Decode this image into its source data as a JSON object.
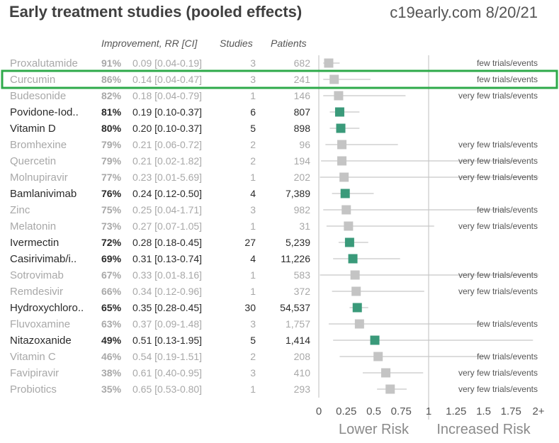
{
  "header": {
    "title": "Early treatment studies (pooled effects)",
    "site": "c19early.com 8/20/21"
  },
  "columns": {
    "improvement": "Improvement, RR [CI]",
    "studies": "Studies",
    "patients": "Patients"
  },
  "colors": {
    "significant_marker": "#3a9a7a",
    "nonsignificant_marker": "#c4c4c4",
    "highlight_box": "#2eaa4a",
    "dim_text": "#a8a8a8",
    "dark_text": "#2a2a2a"
  },
  "chart_data": {
    "type": "forest",
    "title": "Early treatment studies (pooled effects)",
    "xlabel_left": "Lower Risk",
    "xlabel_right": "Increased Risk",
    "xlim": [
      0,
      2
    ],
    "reference_line": 1,
    "ticks": [
      {
        "value": 0,
        "label": "0"
      },
      {
        "value": 0.25,
        "label": "0.25"
      },
      {
        "value": 0.5,
        "label": "0.5"
      },
      {
        "value": 0.75,
        "label": "0.75"
      },
      {
        "value": 1,
        "label": "1"
      },
      {
        "value": 1.25,
        "label": "1.25"
      },
      {
        "value": 1.5,
        "label": "1.5"
      },
      {
        "value": 1.75,
        "label": "1.75"
      },
      {
        "value": 2,
        "label": "2+"
      }
    ],
    "highlighted_row": "Curcumin",
    "rows": [
      {
        "name": "Proxalutamide",
        "improvement": "91%",
        "rr_text": "0.09 [0.04-0.19]",
        "rr": 0.09,
        "lo": 0.04,
        "hi": 0.19,
        "studies": "3",
        "patients": "682",
        "note": "few trials/events",
        "significant": false
      },
      {
        "name": "Curcumin",
        "improvement": "86%",
        "rr_text": "0.14 [0.04-0.47]",
        "rr": 0.14,
        "lo": 0.04,
        "hi": 0.47,
        "studies": "3",
        "patients": "241",
        "note": "few trials/events",
        "significant": false
      },
      {
        "name": "Budesonide",
        "improvement": "82%",
        "rr_text": "0.18 [0.04-0.79]",
        "rr": 0.18,
        "lo": 0.04,
        "hi": 0.79,
        "studies": "1",
        "patients": "146",
        "note": "very few trials/events",
        "significant": false
      },
      {
        "name": "Povidone-Iod..",
        "improvement": "81%",
        "rr_text": "0.19 [0.10-0.37]",
        "rr": 0.19,
        "lo": 0.1,
        "hi": 0.37,
        "studies": "6",
        "patients": "807",
        "note": "",
        "significant": true
      },
      {
        "name": "Vitamin D",
        "improvement": "80%",
        "rr_text": "0.20 [0.10-0.37]",
        "rr": 0.2,
        "lo": 0.1,
        "hi": 0.37,
        "studies": "5",
        "patients": "898",
        "note": "",
        "significant": true
      },
      {
        "name": "Bromhexine",
        "improvement": "79%",
        "rr_text": "0.21 [0.06-0.72]",
        "rr": 0.21,
        "lo": 0.06,
        "hi": 0.72,
        "studies": "2",
        "patients": "96",
        "note": "very few trials/events",
        "significant": false
      },
      {
        "name": "Quercetin",
        "improvement": "79%",
        "rr_text": "0.21 [0.02-1.82]",
        "rr": 0.21,
        "lo": 0.02,
        "hi": 1.82,
        "studies": "2",
        "patients": "194",
        "note": "very few trials/events",
        "significant": false
      },
      {
        "name": "Molnupiravir",
        "improvement": "77%",
        "rr_text": "0.23 [0.01-5.69]",
        "rr": 0.23,
        "lo": 0.01,
        "hi": 5.69,
        "studies": "1",
        "patients": "202",
        "note": "very few trials/events",
        "significant": false
      },
      {
        "name": "Bamlanivimab",
        "improvement": "76%",
        "rr_text": "0.24 [0.12-0.50]",
        "rr": 0.24,
        "lo": 0.12,
        "hi": 0.5,
        "studies": "4",
        "patients": "7,389",
        "note": "",
        "significant": true
      },
      {
        "name": "Zinc",
        "improvement": "75%",
        "rr_text": "0.25 [0.04-1.71]",
        "rr": 0.25,
        "lo": 0.04,
        "hi": 1.71,
        "studies": "3",
        "patients": "982",
        "note": "few trials/events",
        "significant": false
      },
      {
        "name": "Melatonin",
        "improvement": "73%",
        "rr_text": "0.27 [0.07-1.05]",
        "rr": 0.27,
        "lo": 0.07,
        "hi": 1.05,
        "studies": "1",
        "patients": "31",
        "note": "very few trials/events",
        "significant": false
      },
      {
        "name": "Ivermectin",
        "improvement": "72%",
        "rr_text": "0.28 [0.18-0.45]",
        "rr": 0.28,
        "lo": 0.18,
        "hi": 0.45,
        "studies": "27",
        "patients": "5,239",
        "note": "",
        "significant": true
      },
      {
        "name": "Casirivimab/i..",
        "improvement": "69%",
        "rr_text": "0.31 [0.13-0.74]",
        "rr": 0.31,
        "lo": 0.13,
        "hi": 0.74,
        "studies": "4",
        "patients": "11,226",
        "note": "",
        "significant": true
      },
      {
        "name": "Sotrovimab",
        "improvement": "67%",
        "rr_text": "0.33 [0.01-8.16]",
        "rr": 0.33,
        "lo": 0.01,
        "hi": 8.16,
        "studies": "1",
        "patients": "583",
        "note": "very few trials/events",
        "significant": false
      },
      {
        "name": "Remdesivir",
        "improvement": "66%",
        "rr_text": "0.34 [0.12-0.96]",
        "rr": 0.34,
        "lo": 0.12,
        "hi": 0.96,
        "studies": "1",
        "patients": "372",
        "note": "very few trials/events",
        "significant": false
      },
      {
        "name": "Hydroxychloro..",
        "improvement": "65%",
        "rr_text": "0.35 [0.28-0.45]",
        "rr": 0.35,
        "lo": 0.28,
        "hi": 0.45,
        "studies": "30",
        "patients": "54,537",
        "note": "",
        "significant": true
      },
      {
        "name": "Fluvoxamine",
        "improvement": "63%",
        "rr_text": "0.37 [0.09-1.48]",
        "rr": 0.37,
        "lo": 0.09,
        "hi": 1.48,
        "studies": "3",
        "patients": "1,757",
        "note": "few trials/events",
        "significant": false
      },
      {
        "name": "Nitazoxanide",
        "improvement": "49%",
        "rr_text": "0.51 [0.13-1.95]",
        "rr": 0.51,
        "lo": 0.13,
        "hi": 1.95,
        "studies": "5",
        "patients": "1,414",
        "note": "",
        "significant": true
      },
      {
        "name": "Vitamin C",
        "improvement": "46%",
        "rr_text": "0.54 [0.19-1.51]",
        "rr": 0.54,
        "lo": 0.19,
        "hi": 1.51,
        "studies": "2",
        "patients": "208",
        "note": "few trials/events",
        "significant": false
      },
      {
        "name": "Favipiravir",
        "improvement": "38%",
        "rr_text": "0.61 [0.40-0.95]",
        "rr": 0.61,
        "lo": 0.4,
        "hi": 0.95,
        "studies": "3",
        "patients": "410",
        "note": "very few trials/events",
        "significant": false
      },
      {
        "name": "Probiotics",
        "improvement": "35%",
        "rr_text": "0.65 [0.53-0.80]",
        "rr": 0.65,
        "lo": 0.53,
        "hi": 0.8,
        "studies": "1",
        "patients": "293",
        "note": "very few trials/events",
        "significant": false
      }
    ]
  }
}
